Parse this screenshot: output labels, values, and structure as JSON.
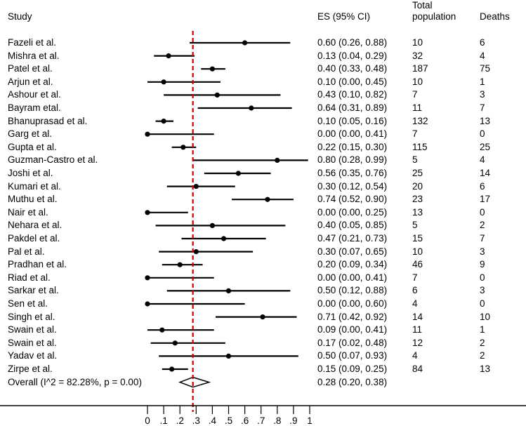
{
  "headers": {
    "study": "Study",
    "es": "ES (95% CI)",
    "total_line1": "Total",
    "total_line2": "population",
    "deaths": "Deaths"
  },
  "chart_data": {
    "type": "forest",
    "xlim": [
      0,
      1
    ],
    "x_ticks": [
      "0",
      ".1",
      ".2",
      ".3",
      ".4",
      ".5",
      ".6",
      ".7",
      ".8",
      ".9",
      "1"
    ],
    "reference_line": 0.28,
    "reference_line_color": "#cc0000",
    "studies": [
      {
        "label": "Fazeli et al.",
        "es": 0.6,
        "lo": 0.26,
        "hi": 0.88,
        "ci_text": "0.60 (0.26, 0.88)",
        "total": "10",
        "deaths": "6"
      },
      {
        "label": "Mishra et al.",
        "es": 0.13,
        "lo": 0.04,
        "hi": 0.29,
        "ci_text": "0.13 (0.04, 0.29)",
        "total": "32",
        "deaths": "4"
      },
      {
        "label": "Patel et al.",
        "es": 0.4,
        "lo": 0.33,
        "hi": 0.48,
        "ci_text": "0.40 (0.33, 0.48)",
        "total": "187",
        "deaths": "75"
      },
      {
        "label": "Arjun et al.",
        "es": 0.1,
        "lo": 0.0,
        "hi": 0.45,
        "ci_text": "0.10 (0.00, 0.45)",
        "total": "10",
        "deaths": "1"
      },
      {
        "label": "Ashour et al.",
        "es": 0.43,
        "lo": 0.1,
        "hi": 0.82,
        "ci_text": "0.43 (0.10, 0.82)",
        "total": "7",
        "deaths": "3"
      },
      {
        "label": "Bayram etal.",
        "es": 0.64,
        "lo": 0.31,
        "hi": 0.89,
        "ci_text": "0.64 (0.31, 0.89)",
        "total": "11",
        "deaths": "7"
      },
      {
        "label": "Bhanuprasad et al.",
        "es": 0.1,
        "lo": 0.05,
        "hi": 0.16,
        "ci_text": "0.10 (0.05, 0.16)",
        "total": "132",
        "deaths": "13"
      },
      {
        "label": "Garg et al.",
        "es": 0.0,
        "lo": 0.0,
        "hi": 0.41,
        "ci_text": "0.00 (0.00, 0.41)",
        "total": "7",
        "deaths": "0"
      },
      {
        "label": "Gupta et al.",
        "es": 0.22,
        "lo": 0.15,
        "hi": 0.3,
        "ci_text": "0.22 (0.15, 0.30)",
        "total": "115",
        "deaths": "25"
      },
      {
        "label": "Guzman-Castro et al.",
        "es": 0.8,
        "lo": 0.28,
        "hi": 0.99,
        "ci_text": "0.80 (0.28, 0.99)",
        "total": "5",
        "deaths": "4"
      },
      {
        "label": "Joshi et al.",
        "es": 0.56,
        "lo": 0.35,
        "hi": 0.76,
        "ci_text": "0.56 (0.35, 0.76)",
        "total": "25",
        "deaths": "14"
      },
      {
        "label": "Kumari et al.",
        "es": 0.3,
        "lo": 0.12,
        "hi": 0.54,
        "ci_text": "0.30 (0.12, 0.54)",
        "total": "20",
        "deaths": "6"
      },
      {
        "label": "Muthu et al.",
        "es": 0.74,
        "lo": 0.52,
        "hi": 0.9,
        "ci_text": "0.74 (0.52, 0.90)",
        "total": "23",
        "deaths": "17"
      },
      {
        "label": "Nair et al.",
        "es": 0.0,
        "lo": 0.0,
        "hi": 0.25,
        "ci_text": "0.00 (0.00, 0.25)",
        "total": "13",
        "deaths": "0"
      },
      {
        "label": "Nehara et al.",
        "es": 0.4,
        "lo": 0.05,
        "hi": 0.85,
        "ci_text": "0.40 (0.05, 0.85)",
        "total": "5",
        "deaths": "2"
      },
      {
        "label": "Pakdel et al.",
        "es": 0.47,
        "lo": 0.21,
        "hi": 0.73,
        "ci_text": "0.47 (0.21, 0.73)",
        "total": "15",
        "deaths": "7"
      },
      {
        "label": "Pal et al.",
        "es": 0.3,
        "lo": 0.07,
        "hi": 0.65,
        "ci_text": "0.30 (0.07, 0.65)",
        "total": "10",
        "deaths": "3"
      },
      {
        "label": "Pradhan et al.",
        "es": 0.2,
        "lo": 0.09,
        "hi": 0.34,
        "ci_text": "0.20 (0.09, 0.34)",
        "total": "46",
        "deaths": "9"
      },
      {
        "label": "Riad et al.",
        "es": 0.0,
        "lo": 0.0,
        "hi": 0.41,
        "ci_text": "0.00 (0.00, 0.41)",
        "total": "7",
        "deaths": "0"
      },
      {
        "label": "Sarkar et al.",
        "es": 0.5,
        "lo": 0.12,
        "hi": 0.88,
        "ci_text": "0.50 (0.12, 0.88)",
        "total": "6",
        "deaths": "3"
      },
      {
        "label": "Sen et al.",
        "es": 0.0,
        "lo": 0.0,
        "hi": 0.6,
        "ci_text": "0.00 (0.00, 0.60)",
        "total": "4",
        "deaths": "0"
      },
      {
        "label": "Singh et al.",
        "es": 0.71,
        "lo": 0.42,
        "hi": 0.92,
        "ci_text": "0.71 (0.42, 0.92)",
        "total": "14",
        "deaths": "10"
      },
      {
        "label": "Swain et al.",
        "es": 0.09,
        "lo": 0.0,
        "hi": 0.41,
        "ci_text": "0.09 (0.00, 0.41)",
        "total": "11",
        "deaths": "1"
      },
      {
        "label": "Swain et al.",
        "es": 0.17,
        "lo": 0.02,
        "hi": 0.48,
        "ci_text": "0.17 (0.02, 0.48)",
        "total": "12",
        "deaths": "2"
      },
      {
        "label": "Yadav et al.",
        "es": 0.5,
        "lo": 0.07,
        "hi": 0.93,
        "ci_text": "0.50 (0.07, 0.93)",
        "total": "4",
        "deaths": "2"
      },
      {
        "label": "Zirpe et al.",
        "es": 0.15,
        "lo": 0.09,
        "hi": 0.25,
        "ci_text": "0.15 (0.09, 0.25)",
        "total": "84",
        "deaths": "13"
      }
    ],
    "overall": {
      "label": "Overall  (I^2 = 82.28%, p = 0.00)",
      "es": 0.28,
      "lo": 0.2,
      "hi": 0.38,
      "ci_text": "0.28 (0.20, 0.38)"
    }
  }
}
